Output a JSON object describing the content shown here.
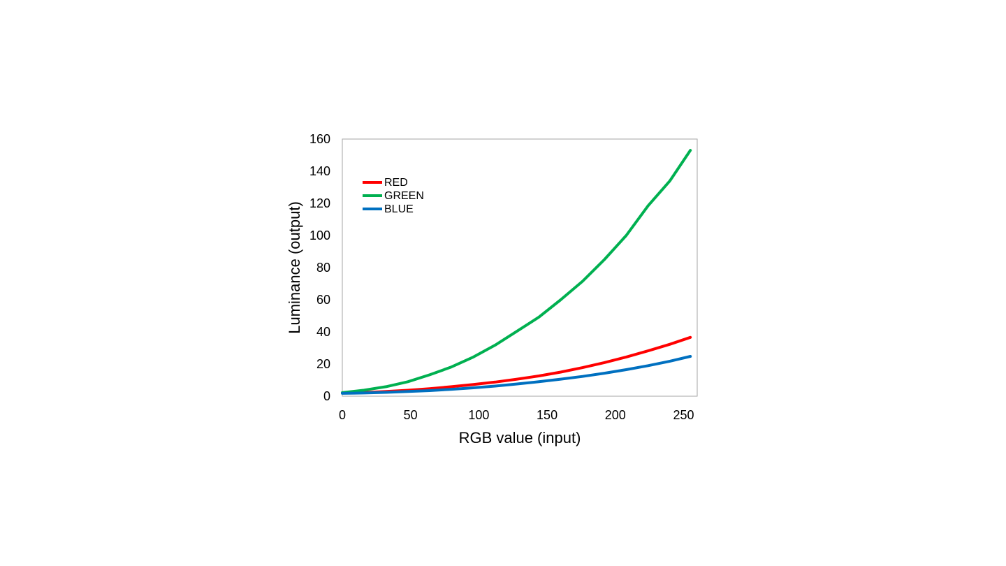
{
  "chart_data": {
    "type": "line",
    "title": "",
    "xlabel": "RGB value (input)",
    "ylabel": "Luminance (output)",
    "xlim": [
      0,
      260
    ],
    "ylim": [
      0,
      160
    ],
    "xticks": [
      0,
      50,
      100,
      150,
      200,
      250
    ],
    "yticks": [
      0,
      20,
      40,
      60,
      80,
      100,
      120,
      140,
      160
    ],
    "grid": false,
    "legend": "top-left",
    "x": [
      0,
      16,
      32,
      48,
      64,
      80,
      96,
      112,
      128,
      144,
      160,
      176,
      192,
      208,
      224,
      240,
      255
    ],
    "series": [
      {
        "name": "RED",
        "color": "#ff0000",
        "values": [
          2.0,
          2.3,
          2.9,
          3.7,
          4.7,
          5.9,
          7.3,
          8.8,
          10.6,
          12.6,
          15.0,
          17.8,
          20.9,
          24.4,
          28.2,
          32.3,
          36.6
        ]
      },
      {
        "name": "GREEN",
        "color": "#00b050",
        "values": [
          2.2,
          3.8,
          5.9,
          9.0,
          13.3,
          18.2,
          24.4,
          31.8,
          40.5,
          49.2,
          60.0,
          71.5,
          85.0,
          100.0,
          118.5,
          134.0,
          153.0
        ]
      },
      {
        "name": "BLUE",
        "color": "#0070c0",
        "values": [
          1.8,
          2.0,
          2.4,
          2.9,
          3.5,
          4.3,
          5.2,
          6.3,
          7.6,
          9.0,
          10.6,
          12.3,
          14.3,
          16.5,
          19.0,
          21.8,
          24.8
        ]
      }
    ]
  }
}
